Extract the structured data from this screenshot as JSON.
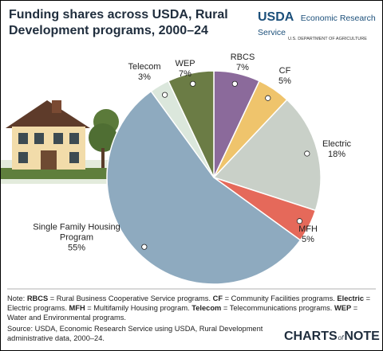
{
  "header": {
    "title": "Funding shares across USDA, Rural Development programs, 2000–24",
    "logo": {
      "mark": "USDA",
      "agency": "Economic Research Service",
      "department": "U.S. DEPARTMENT OF AGRICULTURE"
    }
  },
  "chart_data": {
    "type": "pie",
    "categories": [
      "RBCS",
      "CF",
      "Electric",
      "MFH",
      "Single Family Housing Program",
      "Telecom",
      "WEP"
    ],
    "values": [
      7,
      5,
      18,
      5,
      55,
      3,
      7
    ],
    "value_labels": [
      "7%",
      "5%",
      "18%",
      "5%",
      "55%",
      "3%",
      "7%"
    ],
    "colors": [
      "#8b6a9b",
      "#efc46c",
      "#c9d0c8",
      "#e5695a",
      "#8eaabf",
      "#dbe7dc",
      "#6b7c45"
    ]
  },
  "footer": {
    "note_label": "Note:",
    "definitions": [
      {
        "term": "RBCS",
        "definition": "= Rural Business Cooperative Service programs."
      },
      {
        "term": "CF",
        "definition": "= Community Facilities programs."
      },
      {
        "term": "Electric",
        "definition": "= Electric programs."
      },
      {
        "term": "MFH",
        "definition": "= Multifamily Housing program."
      },
      {
        "term": "Telecom",
        "definition": "= Telecommunications programs."
      },
      {
        "term": "WEP",
        "definition": "= Water and Environmental programs."
      }
    ],
    "source": "Source: USDA, Economic Research Service using USDA, Rural Development administrative data, 2000–24.",
    "brand": {
      "a": "CHARTS",
      "b": "of",
      "c": "NOTE"
    }
  }
}
